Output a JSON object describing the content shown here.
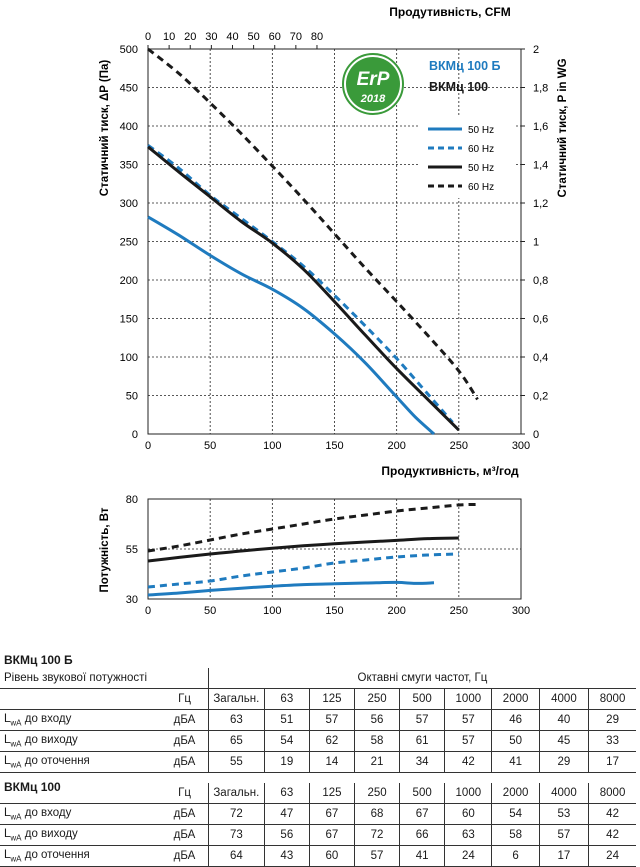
{
  "chart_data": [
    {
      "type": "line",
      "xlabel": "Продуктивність, м³/год",
      "x2label": "Продутивність, CFM",
      "ylabel": "Статичний тиск, ΔP (Па)",
      "y2label": "Статичний тиск, P in WG",
      "xlim": [
        0,
        300
      ],
      "ylim": [
        0,
        500
      ],
      "x2lim": [
        0,
        176.6
      ],
      "y2lim": [
        0,
        2.0
      ],
      "x_ticks": [
        "0",
        "50",
        "100",
        "150",
        "200",
        "250",
        "300"
      ],
      "y_ticks": [
        "0",
        "50",
        "100",
        "150",
        "200",
        "250",
        "300",
        "350",
        "400",
        "450",
        "500"
      ],
      "x2_ticks": [
        "0",
        "10",
        "20",
        "30",
        "40",
        "50",
        "60",
        "70",
        "80"
      ],
      "y2_ticks": [
        "0",
        "0,2",
        "0,4",
        "0,6",
        "0,8",
        "1",
        "1,2",
        "1,4",
        "1,6",
        "1,8",
        "2"
      ],
      "grid": true,
      "legend_position": "top-right",
      "badge": {
        "text": "ErP",
        "year": "2018"
      },
      "model_labels": [
        {
          "text": "ВКМц 100 Б",
          "color": "#1f7bbf"
        },
        {
          "text": "ВКМц 100",
          "color": "#1a1a1a"
        }
      ],
      "series": [
        {
          "name": "50 Hz",
          "model": "ВКМц 100 Б",
          "color": "#1f7bbf",
          "dash": false,
          "x": [
            0,
            25,
            50,
            75,
            100,
            125,
            150,
            175,
            200,
            215,
            230
          ],
          "y": [
            282,
            258,
            232,
            208,
            188,
            163,
            130,
            92,
            48,
            22,
            0
          ]
        },
        {
          "name": "60 Hz",
          "model": "ВКМц 100 Б",
          "color": "#1f7bbf",
          "dash": true,
          "x": [
            0,
            25,
            50,
            75,
            100,
            125,
            150,
            175,
            200,
            225,
            245
          ],
          "y": [
            375,
            345,
            310,
            280,
            250,
            218,
            180,
            140,
            98,
            52,
            15
          ]
        },
        {
          "name": "50 Hz",
          "model": "ВКМц 100",
          "color": "#1a1a1a",
          "dash": false,
          "x": [
            0,
            25,
            50,
            75,
            100,
            125,
            150,
            175,
            200,
            225,
            250
          ],
          "y": [
            373,
            340,
            308,
            276,
            248,
            214,
            172,
            128,
            85,
            45,
            5
          ]
        },
        {
          "name": "60 Hz",
          "model": "ВКМц 100",
          "color": "#1a1a1a",
          "dash": true,
          "x": [
            0,
            25,
            50,
            75,
            100,
            125,
            150,
            175,
            200,
            225,
            250,
            265
          ],
          "y": [
            500,
            468,
            430,
            390,
            348,
            305,
            260,
            215,
            172,
            128,
            82,
            45
          ]
        }
      ]
    },
    {
      "type": "line",
      "xlabel": "",
      "ylabel": "Потужність, Вт",
      "xlim": [
        0,
        300
      ],
      "ylim": [
        30,
        80
      ],
      "x_ticks": [
        "0",
        "50",
        "100",
        "150",
        "200",
        "250",
        "300"
      ],
      "y_ticks": [
        "30",
        "55",
        "80"
      ],
      "grid": true,
      "series": [
        {
          "name": "50 Hz",
          "model": "ВКМц 100 Б",
          "color": "#1f7bbf",
          "dash": false,
          "x": [
            0,
            25,
            50,
            75,
            100,
            125,
            150,
            175,
            200,
            215,
            230
          ],
          "y": [
            32,
            33,
            34.3,
            35.4,
            36.4,
            37.2,
            37.6,
            38,
            38.3,
            37.8,
            38.1
          ]
        },
        {
          "name": "60 Hz",
          "model": "ВКМц 100 Б",
          "color": "#1f7bbf",
          "dash": true,
          "x": [
            0,
            25,
            50,
            75,
            100,
            125,
            150,
            175,
            200,
            225,
            250
          ],
          "y": [
            36,
            37.5,
            39,
            41.5,
            43.5,
            45.5,
            48,
            49.5,
            51,
            52,
            52.5
          ]
        },
        {
          "name": "50 Hz",
          "model": "ВКМц 100",
          "color": "#1a1a1a",
          "dash": false,
          "x": [
            0,
            25,
            50,
            75,
            100,
            125,
            150,
            175,
            200,
            225,
            250
          ],
          "y": [
            49,
            50.8,
            52.5,
            54,
            55.4,
            56.6,
            57.6,
            58.5,
            59.3,
            60.2,
            60.5
          ]
        },
        {
          "name": "60 Hz",
          "model": "ВКМц 100",
          "color": "#1a1a1a",
          "dash": true,
          "x": [
            0,
            25,
            50,
            75,
            100,
            125,
            150,
            175,
            200,
            225,
            250,
            265
          ],
          "y": [
            54,
            56.5,
            59.5,
            62.5,
            65,
            67.5,
            70,
            72,
            74,
            75.5,
            77,
            77.3
          ]
        }
      ]
    }
  ],
  "tables": {
    "t1_title": "ВКМц 100 Б",
    "t1_header_label": "Рівень звукової потужності",
    "t1_header_bands": "Октавні смуги частот, Гц",
    "t2_title": "ВКМц 100",
    "cols": [
      "Гц",
      "Загальн.",
      "63",
      "125",
      "250",
      "500",
      "1000",
      "2000",
      "4000",
      "8000"
    ],
    "row_names": [
      "до входу",
      "до виходу",
      "до оточення"
    ],
    "t1_rows": [
      {
        "unit": "дБА",
        "values": [
          "63",
          "51",
          "57",
          "56",
          "57",
          "57",
          "46",
          "40",
          "29"
        ]
      },
      {
        "unit": "дБА",
        "values": [
          "65",
          "54",
          "62",
          "58",
          "61",
          "57",
          "50",
          "45",
          "33"
        ]
      },
      {
        "unit": "дБА",
        "values": [
          "55",
          "19",
          "14",
          "21",
          "34",
          "42",
          "41",
          "29",
          "17"
        ]
      }
    ],
    "t2_rows": [
      {
        "unit": "дБА",
        "values": [
          "72",
          "47",
          "67",
          "68",
          "67",
          "60",
          "54",
          "53",
          "42"
        ]
      },
      {
        "unit": "дБА",
        "values": [
          "73",
          "56",
          "67",
          "72",
          "66",
          "63",
          "58",
          "57",
          "42"
        ]
      },
      {
        "unit": "дБА",
        "values": [
          "64",
          "43",
          "60",
          "57",
          "41",
          "24",
          "6",
          "17",
          "24"
        ]
      }
    ]
  }
}
